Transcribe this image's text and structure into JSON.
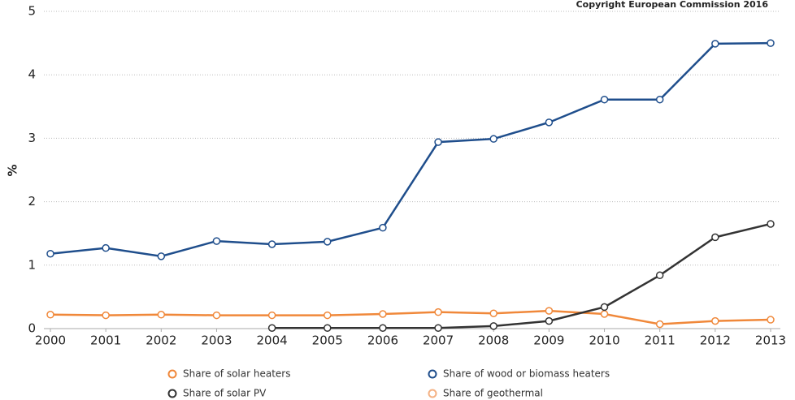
{
  "chart_data": {
    "type": "line",
    "note": "Copyright European Commission 2016",
    "y_label": "%",
    "x": [
      2000,
      2001,
      2002,
      2003,
      2004,
      2005,
      2006,
      2007,
      2008,
      2009,
      2010,
      2011,
      2012,
      2013
    ],
    "xlim": [
      2000,
      2013
    ],
    "xticks": [
      2000,
      2001,
      2002,
      2003,
      2004,
      2005,
      2006,
      2007,
      2008,
      2009,
      2010,
      2011,
      2012,
      2013
    ],
    "ylim": [
      0,
      5
    ],
    "yticks": [
      0,
      1,
      2,
      3,
      4,
      5
    ],
    "grid": true,
    "series": [
      {
        "name": "Share of solar heaters",
        "color": "#f0883a",
        "values": [
          0.22,
          0.21,
          0.22,
          0.21,
          0.21,
          0.21,
          0.23,
          0.26,
          0.24,
          0.28,
          0.23,
          0.07,
          0.12,
          0.14
        ]
      },
      {
        "name": "Share of wood or biomass heaters",
        "color": "#1f4e8c",
        "values": [
          1.18,
          1.27,
          1.14,
          1.38,
          1.33,
          1.37,
          1.59,
          2.94,
          2.99,
          3.25,
          3.61,
          3.61,
          4.49,
          4.5
        ]
      },
      {
        "name": "Share of solar PV",
        "color": "#333333",
        "values": [
          null,
          null,
          null,
          null,
          0.01,
          0.01,
          0.01,
          0.01,
          0.04,
          0.12,
          0.34,
          0.84,
          1.44,
          1.65
        ]
      },
      {
        "name": "Share of geothermal",
        "color": "#f4b183",
        "values": [
          null,
          null,
          null,
          null,
          null,
          null,
          null,
          null,
          null,
          null,
          null,
          null,
          null,
          null
        ]
      }
    ]
  }
}
